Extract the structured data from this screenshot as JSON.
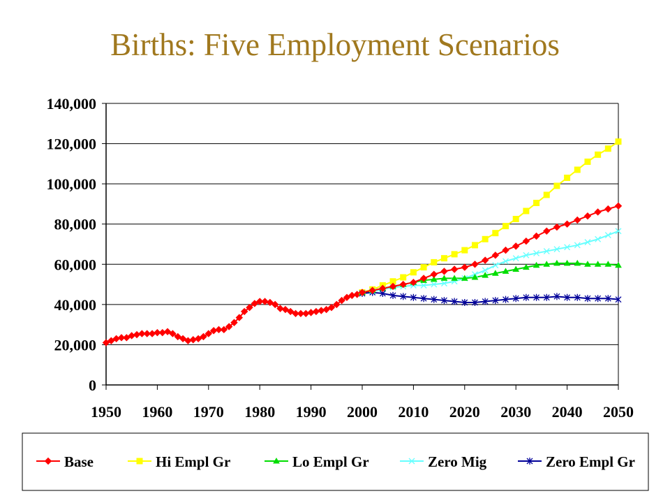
{
  "slide": {
    "title": "Births: Five Employment Scenarios"
  },
  "chart_data": {
    "type": "line",
    "title": "Births: Five Employment Scenarios",
    "xlabel": "",
    "ylabel": "",
    "xlim": [
      1950,
      2050
    ],
    "ylim": [
      0,
      140000
    ],
    "xticks": [
      "1950",
      "1960",
      "1970",
      "1980",
      "1990",
      "2000",
      "2010",
      "2020",
      "2030",
      "2040",
      "2050"
    ],
    "yticks": [
      "0",
      "20,000",
      "40,000",
      "60,000",
      "80,000",
      "100,000",
      "120,000",
      "140,000"
    ],
    "grid": "horizontal",
    "legend_position": "bottom",
    "history": {
      "x": [
        1950,
        1951,
        1952,
        1953,
        1954,
        1955,
        1956,
        1957,
        1958,
        1959,
        1960,
        1961,
        1962,
        1963,
        1964,
        1965,
        1966,
        1967,
        1968,
        1969,
        1970,
        1971,
        1972,
        1973,
        1974,
        1975,
        1976,
        1977,
        1978,
        1979,
        1980,
        1981,
        1982,
        1983,
        1984,
        1985,
        1986,
        1987,
        1988,
        1989,
        1990,
        1991,
        1992,
        1993,
        1994,
        1995,
        1996,
        1997,
        1998,
        1999
      ],
      "y": [
        21000,
        22000,
        23000,
        23500,
        23500,
        24500,
        25000,
        25500,
        25500,
        25500,
        26000,
        26000,
        26500,
        25500,
        24000,
        23000,
        22000,
        22500,
        23000,
        24000,
        25500,
        27000,
        27500,
        27500,
        29000,
        31000,
        33500,
        36500,
        38500,
        40500,
        41500,
        41500,
        41000,
        40000,
        38000,
        37500,
        36500,
        35500,
        35500,
        35500,
        36000,
        36500,
        37000,
        37500,
        38500,
        40000,
        42000,
        43500,
        44500,
        45000
      ]
    },
    "projection_x": [
      2000,
      2002,
      2004,
      2006,
      2008,
      2010,
      2012,
      2014,
      2016,
      2018,
      2020,
      2022,
      2024,
      2026,
      2028,
      2030,
      2032,
      2034,
      2036,
      2038,
      2040,
      2042,
      2044,
      2046,
      2048,
      2050
    ],
    "series": [
      {
        "name": "Base",
        "color": "#ff0000",
        "marker": "diamond",
        "values": [
          46000,
          47000,
          48000,
          49000,
          50000,
          51000,
          53000,
          55000,
          56500,
          57500,
          58500,
          60000,
          62000,
          64500,
          67000,
          69000,
          71500,
          74000,
          76500,
          78500,
          80000,
          82000,
          84000,
          86000,
          87500,
          89000
        ]
      },
      {
        "name": "Hi Empl Gr",
        "color": "#ffff00",
        "marker": "square",
        "values": [
          46000,
          47500,
          49500,
          51500,
          53500,
          56000,
          58500,
          61000,
          63000,
          65000,
          67000,
          69500,
          72500,
          75500,
          79000,
          82500,
          86500,
          90500,
          94500,
          99000,
          103000,
          107000,
          111000,
          114500,
          117500,
          121000
        ]
      },
      {
        "name": "Lo Empl Gr",
        "color": "#00dd00",
        "marker": "triangle",
        "values": [
          46000,
          47000,
          48000,
          49000,
          50000,
          51000,
          52000,
          52500,
          53000,
          53000,
          53000,
          53500,
          54500,
          55500,
          56500,
          57500,
          58500,
          59500,
          60000,
          60500,
          60500,
          60500,
          60000,
          60000,
          60000,
          59500
        ]
      },
      {
        "name": "Zero Mig",
        "color": "#66ffff",
        "marker": "x",
        "values": [
          45500,
          46500,
          47500,
          48500,
          49000,
          49500,
          49500,
          50000,
          50500,
          51500,
          53000,
          55000,
          57000,
          59500,
          61500,
          63000,
          64500,
          65500,
          66500,
          67500,
          68500,
          69500,
          71000,
          72500,
          74500,
          76500
        ]
      },
      {
        "name": "Zero Empl Gr",
        "color": "#000099",
        "marker": "asterisk",
        "values": [
          45500,
          46000,
          45500,
          44500,
          44000,
          43500,
          43000,
          42500,
          42000,
          41500,
          41000,
          41000,
          41500,
          42000,
          42500,
          43000,
          43500,
          43500,
          43500,
          44000,
          43500,
          43500,
          43000,
          43000,
          43000,
          42500
        ]
      }
    ]
  }
}
